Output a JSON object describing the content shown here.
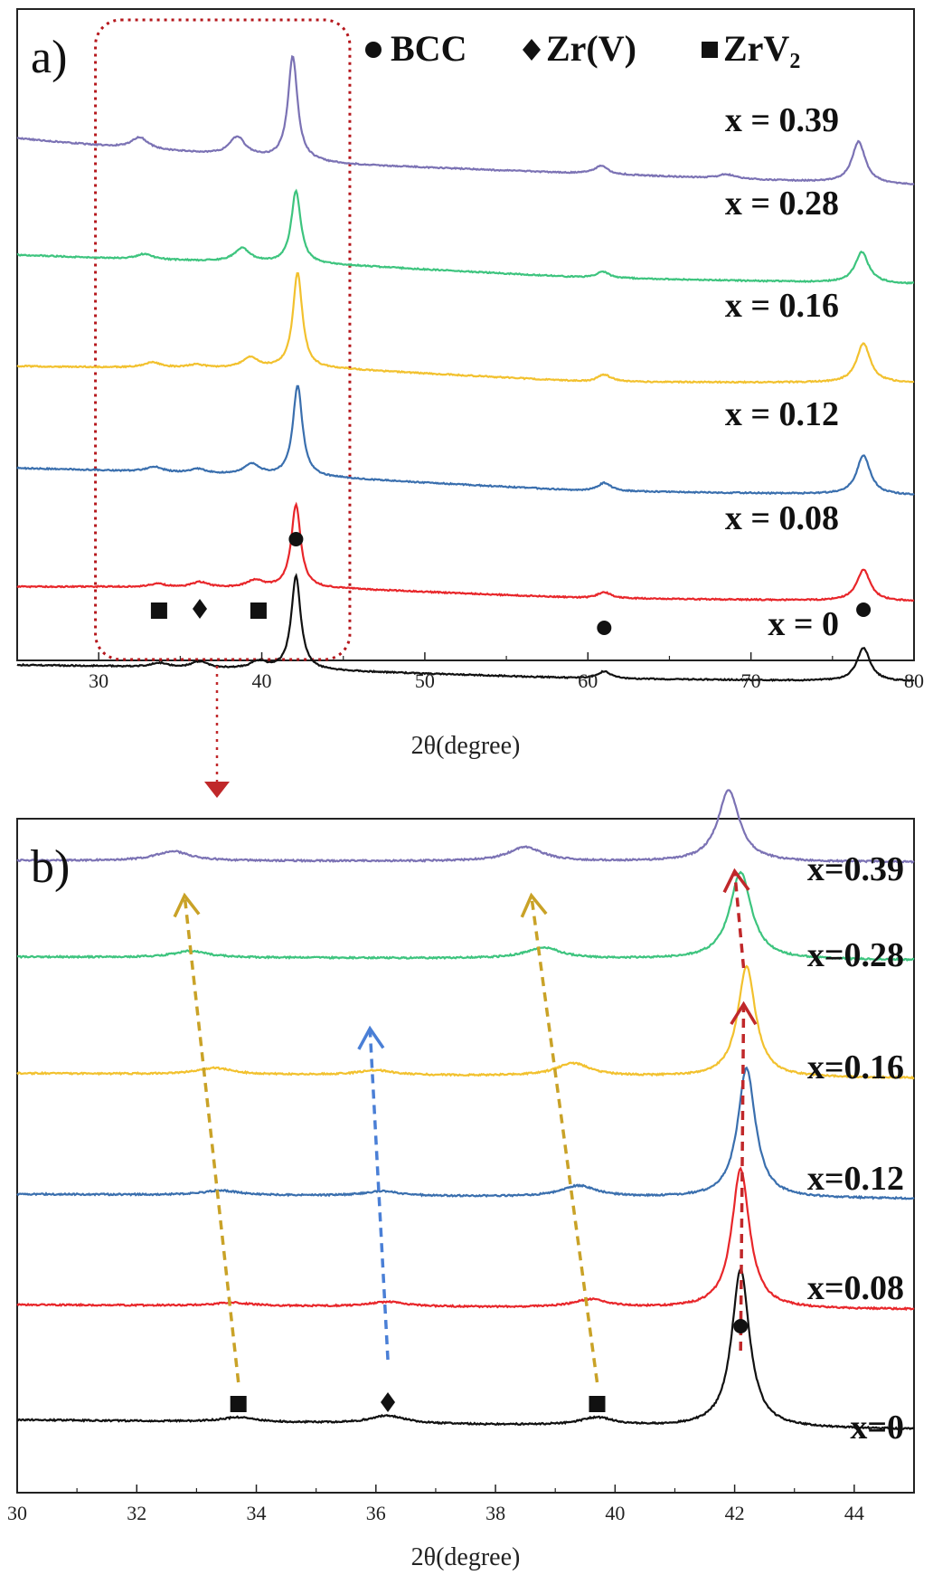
{
  "chart_data": [
    {
      "type": "line",
      "panel_label": "a)",
      "xlabel": "2θ(degree)",
      "ylabel": "",
      "xlim": [
        25,
        80
      ],
      "x_ticks": [
        30,
        40,
        50,
        60,
        70,
        80
      ],
      "colors": {
        "x = 0.39": "#7b72b4",
        "x = 0.28": "#3dc47e",
        "x = 0.16": "#f2c12e",
        "x = 0.12": "#3a6fae",
        "x = 0.08": "#e8262a",
        "x = 0": "#111111"
      },
      "legend": [
        {
          "marker": "circle",
          "label": "BCC"
        },
        {
          "marker": "diamond",
          "label": "Zr(V)"
        },
        {
          "marker": "square",
          "label": "ZrV₂"
        }
      ],
      "series": [
        {
          "name": "x = 0.39",
          "baseline": [
            [
              25,
              0.67
            ],
            [
              30,
              0.6
            ],
            [
              45,
              0.42
            ],
            [
              60,
              0.33
            ],
            [
              80,
              0.22
            ]
          ],
          "peaks": [
            [
              32.5,
              0.11,
              0.6
            ],
            [
              38.5,
              0.18,
              0.6
            ],
            [
              41.9,
              1.0,
              0.35
            ],
            [
              60.8,
              0.08,
              0.5
            ],
            [
              68.5,
              0.04,
              0.6
            ],
            [
              76.6,
              0.4,
              0.5
            ]
          ]
        },
        {
          "name": "x = 0.28",
          "baseline": [
            [
              25,
              0.55
            ],
            [
              30,
              0.52
            ],
            [
              45,
              0.45
            ],
            [
              60,
              0.33
            ],
            [
              80,
              0.27
            ]
          ],
          "peaks": [
            [
              32.8,
              0.05,
              0.6
            ],
            [
              38.8,
              0.13,
              0.6
            ],
            [
              42.1,
              0.7,
              0.35
            ],
            [
              60.9,
              0.06,
              0.5
            ],
            [
              76.8,
              0.3,
              0.5
            ]
          ]
        },
        {
          "name": "x = 0.16",
          "baseline": [
            [
              25,
              0.48
            ],
            [
              30,
              0.47
            ],
            [
              45,
              0.45
            ],
            [
              60,
              0.33
            ],
            [
              80,
              0.32
            ]
          ],
          "peaks": [
            [
              33.3,
              0.05,
              0.6
            ],
            [
              36.0,
              0.03,
              0.6
            ],
            [
              39.3,
              0.1,
              0.6
            ],
            [
              42.2,
              0.92,
              0.35
            ],
            [
              61.0,
              0.07,
              0.5
            ],
            [
              76.9,
              0.38,
              0.5
            ]
          ]
        },
        {
          "name": "x = 0.12",
          "baseline": [
            [
              25,
              0.5
            ],
            [
              30,
              0.48
            ],
            [
              45,
              0.4
            ],
            [
              60,
              0.28
            ],
            [
              80,
              0.24
            ]
          ],
          "peaks": [
            [
              33.4,
              0.05,
              0.6
            ],
            [
              36.1,
              0.04,
              0.6
            ],
            [
              39.4,
              0.1,
              0.6
            ],
            [
              42.2,
              0.88,
              0.35
            ],
            [
              61.0,
              0.08,
              0.5
            ],
            [
              76.9,
              0.38,
              0.5
            ]
          ]
        },
        {
          "name": "x = 0.08",
          "baseline": [
            [
              25,
              0.36
            ],
            [
              30,
              0.36
            ],
            [
              45,
              0.34
            ],
            [
              60,
              0.25
            ],
            [
              80,
              0.22
            ]
          ],
          "peaks": [
            [
              33.6,
              0.03,
              0.6
            ],
            [
              36.2,
              0.05,
              0.6
            ],
            [
              39.6,
              0.07,
              0.6
            ],
            [
              42.1,
              0.8,
              0.35
            ],
            [
              61.0,
              0.06,
              0.5
            ],
            [
              76.9,
              0.3,
              0.5
            ]
          ]
        },
        {
          "name": "x = 0",
          "baseline": [
            [
              25,
              0.26
            ],
            [
              30,
              0.25
            ],
            [
              45,
              0.2
            ],
            [
              60,
              0.13
            ],
            [
              80,
              0.1
            ]
          ],
          "peaks": [
            [
              33.7,
              0.04,
              0.6
            ],
            [
              36.2,
              0.06,
              0.6
            ],
            [
              39.8,
              0.07,
              0.6
            ],
            [
              42.1,
              0.9,
              0.35
            ],
            [
              61.0,
              0.07,
              0.5
            ],
            [
              76.9,
              0.32,
              0.5
            ]
          ]
        }
      ],
      "markers": [
        {
          "type": "square",
          "x": 33.7
        },
        {
          "type": "diamond",
          "x": 36.2
        },
        {
          "type": "square",
          "x": 39.8
        },
        {
          "type": "circle",
          "x": 42.1
        },
        {
          "type": "circle",
          "x": 61.0
        },
        {
          "type": "circle",
          "x": 76.9
        }
      ],
      "highlight_range": [
        29.8,
        45.4
      ]
    },
    {
      "type": "line",
      "panel_label": "b)",
      "xlabel": "2θ(degree)",
      "ylabel": "",
      "xlim": [
        30,
        45
      ],
      "x_ticks": [
        30,
        32,
        34,
        36,
        38,
        40,
        42,
        44
      ],
      "series": [
        {
          "name": "x=0.39",
          "baseline": [
            [
              30,
              0.45
            ],
            [
              45,
              0.44
            ]
          ],
          "peaks": [
            [
              32.6,
              0.06,
              0.35
            ],
            [
              38.5,
              0.09,
              0.35
            ],
            [
              41.9,
              0.45,
              0.22
            ]
          ]
        },
        {
          "name": "x=0.28",
          "baseline": [
            [
              30,
              0.47
            ],
            [
              45,
              0.45
            ]
          ],
          "peaks": [
            [
              32.9,
              0.04,
              0.35
            ],
            [
              38.8,
              0.07,
              0.35
            ],
            [
              42.1,
              0.55,
              0.22
            ]
          ]
        },
        {
          "name": "x=0.16",
          "baseline": [
            [
              30,
              0.46
            ],
            [
              45,
              0.43
            ]
          ],
          "peaks": [
            [
              33.3,
              0.04,
              0.35
            ],
            [
              36.0,
              0.03,
              0.35
            ],
            [
              39.3,
              0.08,
              0.35
            ],
            [
              42.2,
              0.7,
              0.18
            ]
          ]
        },
        {
          "name": "x=0.12",
          "baseline": [
            [
              30,
              0.4
            ],
            [
              45,
              0.37
            ]
          ],
          "peaks": [
            [
              33.4,
              0.03,
              0.35
            ],
            [
              36.1,
              0.03,
              0.35
            ],
            [
              39.4,
              0.07,
              0.35
            ],
            [
              42.2,
              0.82,
              0.18
            ]
          ]
        },
        {
          "name": "x=0.08",
          "baseline": [
            [
              30,
              0.37
            ],
            [
              45,
              0.34
            ]
          ],
          "peaks": [
            [
              33.6,
              0.02,
              0.35
            ],
            [
              36.2,
              0.03,
              0.35
            ],
            [
              39.6,
              0.05,
              0.35
            ],
            [
              42.1,
              0.88,
              0.18
            ]
          ]
        },
        {
          "name": "x=0",
          "baseline": [
            [
              30,
              0.38
            ],
            [
              45,
              0.32
            ]
          ],
          "peaks": [
            [
              33.7,
              0.03,
              0.35
            ],
            [
              36.2,
              0.05,
              0.35
            ],
            [
              39.7,
              0.05,
              0.35
            ],
            [
              42.1,
              1.0,
              0.18
            ]
          ]
        }
      ],
      "markers": [
        {
          "type": "square",
          "x": 33.7
        },
        {
          "type": "diamond",
          "x": 36.2
        },
        {
          "type": "square",
          "x": 39.7
        },
        {
          "type": "circle",
          "x": 42.1
        }
      ],
      "shift_arrows": [
        {
          "color": "#c9a227",
          "from_x": 33.7,
          "to_x": 32.8
        },
        {
          "color": "#4a7fd6",
          "from_x": 36.2,
          "to_x": 35.9
        },
        {
          "color": "#c9a227",
          "from_x": 39.7,
          "to_x": 38.6
        },
        {
          "color": "#c0282a",
          "from_x": 42.1,
          "to_x": 42.15,
          "stop": "x=0.16"
        },
        {
          "color": "#c0282a",
          "from_x": 42.15,
          "to_x": 42.0,
          "stop": "x=0.39"
        }
      ]
    }
  ]
}
